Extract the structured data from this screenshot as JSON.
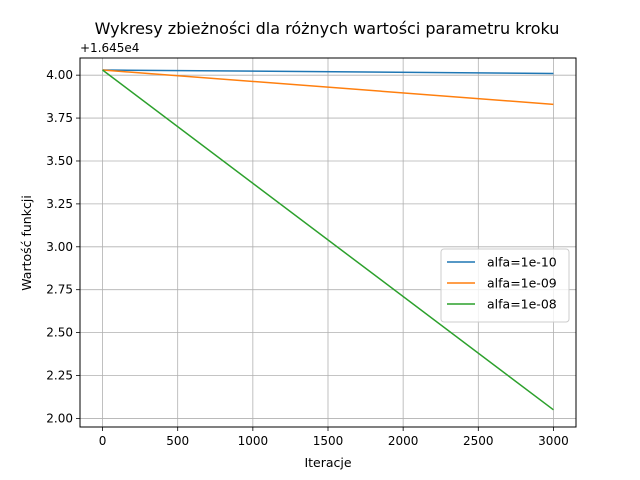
{
  "chart_data": {
    "type": "line",
    "title": "Wykresy zbieżności dla różnych wartości parametru kroku",
    "xlabel": "Iteracje",
    "ylabel": "Wartość funkcji",
    "offset_label": "+1.645e4",
    "xlim": [
      -150,
      3150
    ],
    "ylim": [
      1.95,
      4.1
    ],
    "xticks": [
      0,
      500,
      1000,
      1500,
      2000,
      2500,
      3000
    ],
    "xtick_labels": [
      "0",
      "500",
      "1000",
      "1500",
      "2000",
      "2500",
      "3000"
    ],
    "yticks": [
      2.0,
      2.25,
      2.5,
      2.75,
      3.0,
      3.25,
      3.5,
      3.75,
      4.0
    ],
    "ytick_labels": [
      "2.00",
      "2.25",
      "2.50",
      "2.75",
      "3.00",
      "3.25",
      "3.50",
      "3.75",
      "4.00"
    ],
    "grid": true,
    "legend_position": "center-right",
    "series": [
      {
        "name": "alfa=1e-10",
        "color": "#1f77b4",
        "x": [
          0,
          3000
        ],
        "y": [
          4.03,
          4.01
        ]
      },
      {
        "name": "alfa=1e-09",
        "color": "#ff7f0e",
        "x": [
          0,
          3000
        ],
        "y": [
          4.03,
          3.83
        ]
      },
      {
        "name": "alfa=1e-08",
        "color": "#2ca02c",
        "x": [
          0,
          3000
        ],
        "y": [
          4.03,
          2.05
        ]
      }
    ]
  }
}
